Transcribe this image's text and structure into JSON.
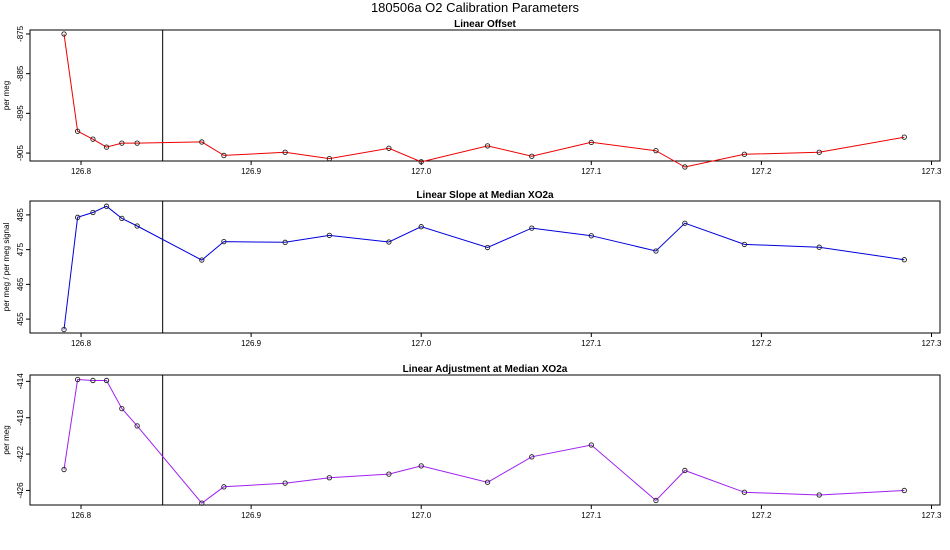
{
  "figure": {
    "title": "180506a   O2 Calibration Parameters"
  },
  "chart_data": [
    {
      "type": "line",
      "title": "Linear Offset",
      "xlabel": "",
      "ylabel": "per meg",
      "xlim": [
        126.77,
        127.305
      ],
      "ylim": [
        -907,
        -874
      ],
      "yreversed": true,
      "xticks": [
        "126.8",
        "126.9",
        "127.0",
        "127.1",
        "127.2",
        "127.3"
      ],
      "yticks": [
        "-875",
        "-885",
        "-895",
        "-905"
      ],
      "vline_x": 126.848,
      "color": "#ee0000",
      "x": [
        126.79,
        126.798,
        126.807,
        126.815,
        126.824,
        126.833,
        126.871,
        126.884,
        126.92,
        126.946,
        126.981,
        127.0,
        127.039,
        127.065,
        127.1,
        127.138,
        127.155,
        127.19,
        127.234,
        127.284
      ],
      "y": [
        -875.0,
        -899.5,
        -901.5,
        -903.5,
        -902.5,
        -902.5,
        -902.2,
        -905.6,
        -904.8,
        -906.4,
        -903.8,
        -907.2,
        -903.2,
        -905.8,
        -902.3,
        -904.4,
        -908.5,
        -905.3,
        -904.8,
        -901.0
      ]
    },
    {
      "type": "line",
      "title": "Linear Slope at Median XO2a",
      "xlabel": "",
      "ylabel": "per meg / per meg signal",
      "xlim": [
        126.77,
        127.305
      ],
      "ylim": [
        451,
        489
      ],
      "xticks": [
        "126.8",
        "126.9",
        "127.0",
        "127.1",
        "127.2",
        "127.3"
      ],
      "yticks": [
        "455",
        "465",
        "475",
        "485"
      ],
      "vline_x": 126.848,
      "color": "#0000dd",
      "x": [
        126.79,
        126.798,
        126.807,
        126.815,
        126.824,
        126.833,
        126.871,
        126.884,
        126.92,
        126.946,
        126.981,
        127.0,
        127.039,
        127.065,
        127.1,
        127.138,
        127.155,
        127.19,
        127.234,
        127.284
      ],
      "y": [
        452.0,
        484.3,
        485.7,
        487.5,
        484.0,
        481.8,
        472.0,
        477.3,
        477.1,
        479.1,
        477.2,
        481.6,
        475.6,
        481.2,
        479.0,
        474.6,
        482.6,
        476.5,
        475.7,
        472.1
      ]
    },
    {
      "type": "line",
      "title": "Linear Adjustment at Median XO2a",
      "xlabel": "",
      "ylabel": "per meg",
      "xlim": [
        126.77,
        127.305
      ],
      "ylim": [
        -427.6,
        -413.3
      ],
      "xticks": [
        "126.8",
        "126.9",
        "127.0",
        "127.1",
        "127.2",
        "127.3"
      ],
      "yticks": [
        "-414",
        "-418",
        "-422",
        "-426"
      ],
      "vline_x": 126.848,
      "color": "#a020f0",
      "x": [
        126.79,
        126.798,
        126.807,
        126.815,
        126.824,
        126.833,
        126.871,
        126.884,
        126.92,
        126.946,
        126.981,
        127.0,
        127.039,
        127.065,
        127.1,
        127.138,
        127.155,
        127.19,
        127.234,
        127.284
      ],
      "y": [
        -423.7,
        -413.8,
        -413.9,
        -413.9,
        -417.0,
        -418.9,
        -427.4,
        -425.6,
        -425.2,
        -424.6,
        -424.2,
        -423.3,
        -425.1,
        -422.3,
        -421.0,
        -427.1,
        -423.8,
        -426.2,
        -426.5,
        -426.0
      ]
    }
  ]
}
